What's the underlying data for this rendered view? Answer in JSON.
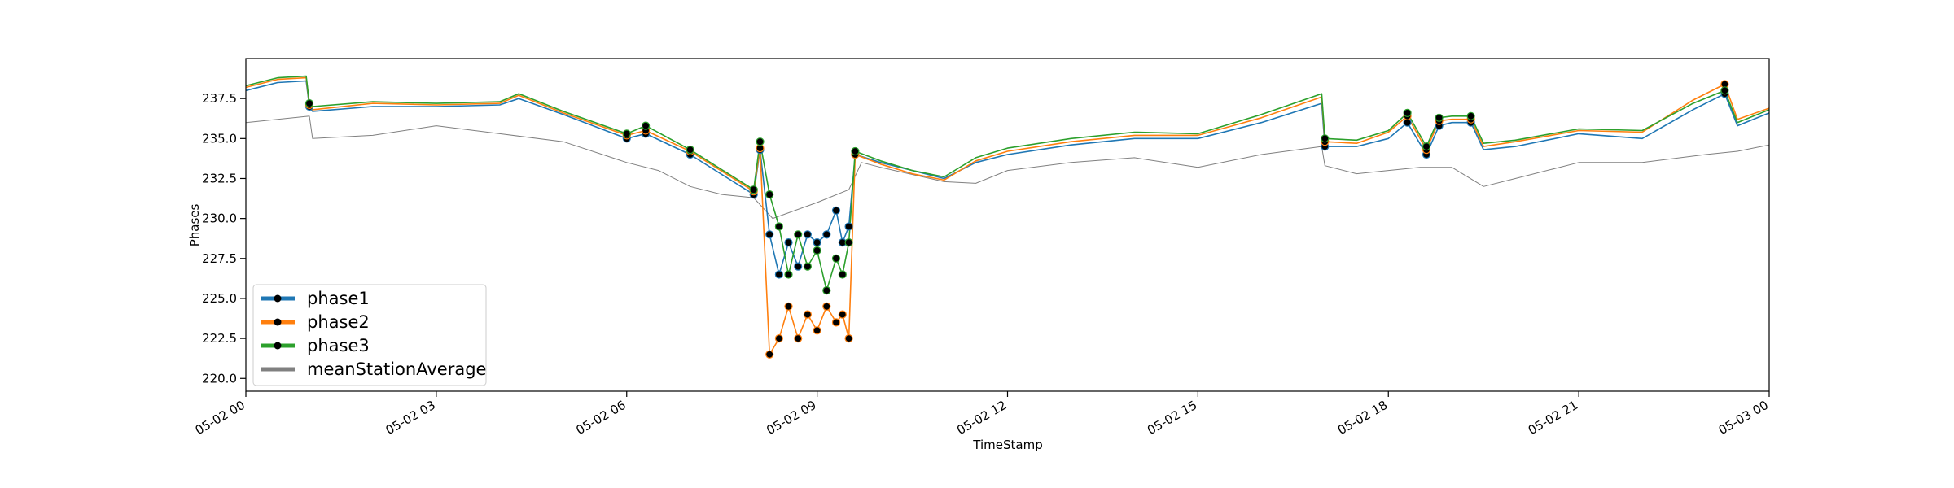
{
  "chart_data": {
    "type": "line",
    "title": "",
    "xlabel": "TimeStamp",
    "ylabel": "Phases",
    "xlim": [
      0,
      24
    ],
    "ylim": [
      219.2,
      240.0
    ],
    "x_ticks": [
      0,
      3,
      6,
      9,
      12,
      15,
      18,
      21,
      24
    ],
    "x_tick_labels": [
      "05-02 00",
      "05-02 03",
      "05-02 06",
      "05-02 09",
      "05-02 12",
      "05-02 15",
      "05-02 18",
      "05-02 21",
      "05-03 00"
    ],
    "y_ticks": [
      220.0,
      222.5,
      225.0,
      227.5,
      230.0,
      232.5,
      235.0,
      237.5
    ],
    "y_tick_labels": [
      "220.0",
      "222.5",
      "225.0",
      "227.5",
      "230.0",
      "232.5",
      "235.0",
      "237.5"
    ],
    "grid": false,
    "legend_position": "lower-left",
    "series": [
      {
        "name": "phase1",
        "color": "#1f77b4",
        "marker": "black-dot",
        "x": [
          0,
          0.5,
          0.95,
          1.0,
          1.05,
          2.0,
          3.0,
          4.0,
          4.3,
          5.0,
          6.0,
          6.3,
          7.0,
          7.6,
          8.0,
          8.1,
          8.25,
          8.4,
          8.55,
          8.7,
          8.85,
          9.0,
          9.15,
          9.3,
          9.4,
          9.5,
          9.6,
          10.0,
          10.5,
          11.0,
          11.5,
          12.0,
          13.0,
          14.0,
          15.0,
          16.0,
          16.95,
          17.0,
          17.5,
          18.0,
          18.3,
          18.6,
          18.8,
          19.0,
          19.3,
          19.5,
          20.0,
          21.0,
          22.0,
          22.8,
          23.3,
          23.5,
          24.0
        ],
        "y": [
          238.0,
          238.5,
          238.6,
          237.0,
          236.7,
          237.0,
          237.0,
          237.1,
          237.5,
          236.5,
          235.0,
          235.3,
          234.0,
          232.5,
          231.5,
          234.3,
          229.0,
          226.5,
          228.5,
          227.0,
          229.0,
          228.5,
          229.0,
          230.5,
          228.5,
          229.5,
          234.0,
          233.5,
          233.0,
          232.5,
          233.5,
          234.0,
          234.6,
          235.0,
          235.0,
          236.0,
          237.2,
          234.5,
          234.5,
          235.0,
          236.0,
          234.0,
          235.8,
          236.0,
          236.0,
          234.3,
          234.5,
          235.3,
          235.0,
          236.8,
          237.8,
          235.8,
          236.6
        ]
      },
      {
        "name": "phase2",
        "color": "#ff7f0e",
        "marker": "black-dot",
        "x": [
          0,
          0.5,
          0.95,
          1.0,
          1.05,
          2.0,
          3.0,
          4.0,
          4.3,
          5.0,
          6.0,
          6.3,
          7.0,
          7.6,
          8.0,
          8.1,
          8.25,
          8.4,
          8.55,
          8.7,
          8.85,
          9.0,
          9.15,
          9.3,
          9.4,
          9.5,
          9.6,
          10.0,
          10.5,
          11.0,
          11.5,
          12.0,
          13.0,
          14.0,
          15.0,
          16.0,
          16.95,
          17.0,
          17.5,
          18.0,
          18.3,
          18.6,
          18.8,
          19.0,
          19.3,
          19.5,
          20.0,
          21.0,
          22.0,
          22.8,
          23.3,
          23.5,
          24.0
        ],
        "y": [
          238.2,
          238.7,
          238.8,
          237.1,
          236.8,
          237.2,
          237.1,
          237.2,
          237.7,
          236.6,
          235.2,
          235.5,
          234.2,
          232.7,
          231.7,
          234.4,
          221.5,
          222.5,
          224.5,
          222.5,
          224.0,
          223.0,
          224.5,
          223.5,
          224.0,
          222.5,
          234.0,
          233.4,
          232.8,
          232.4,
          233.6,
          234.2,
          234.8,
          235.2,
          235.2,
          236.3,
          237.6,
          234.8,
          234.7,
          235.4,
          236.4,
          234.3,
          236.1,
          236.2,
          236.2,
          234.5,
          234.8,
          235.5,
          235.4,
          237.4,
          238.4,
          236.2,
          236.9
        ]
      },
      {
        "name": "phase3",
        "color": "#2ca02c",
        "marker": "black-dot",
        "x": [
          0,
          0.5,
          0.95,
          1.0,
          1.05,
          2.0,
          3.0,
          4.0,
          4.3,
          5.0,
          6.0,
          6.3,
          7.0,
          7.6,
          8.0,
          8.1,
          8.25,
          8.4,
          8.55,
          8.7,
          8.85,
          9.0,
          9.15,
          9.3,
          9.4,
          9.5,
          9.6,
          10.0,
          10.5,
          11.0,
          11.5,
          12.0,
          13.0,
          14.0,
          15.0,
          16.0,
          16.95,
          17.0,
          17.5,
          18.0,
          18.3,
          18.6,
          18.8,
          19.0,
          19.3,
          19.5,
          20.0,
          21.0,
          22.0,
          22.8,
          23.3,
          23.5,
          24.0
        ],
        "y": [
          238.3,
          238.8,
          238.9,
          237.2,
          237.0,
          237.3,
          237.2,
          237.3,
          237.8,
          236.7,
          235.3,
          235.8,
          234.3,
          232.8,
          231.8,
          234.8,
          231.5,
          229.5,
          226.5,
          229.0,
          227.0,
          228.0,
          225.5,
          227.5,
          226.5,
          228.5,
          234.2,
          233.6,
          233.0,
          232.6,
          233.8,
          234.4,
          235.0,
          235.4,
          235.3,
          236.5,
          237.8,
          235.0,
          234.9,
          235.5,
          236.6,
          234.5,
          236.3,
          236.4,
          236.4,
          234.7,
          234.9,
          235.6,
          235.5,
          237.2,
          238.0,
          236.0,
          236.8
        ]
      },
      {
        "name": "meanStationAverage",
        "color": "#808080",
        "marker": "none",
        "x": [
          0,
          0.5,
          1.0,
          1.05,
          2.0,
          3.0,
          4.0,
          5.0,
          6.0,
          6.5,
          7.0,
          7.5,
          8.0,
          8.3,
          9.0,
          9.5,
          9.7,
          10.0,
          11.0,
          11.5,
          12.0,
          13.0,
          14.0,
          15.0,
          16.0,
          16.95,
          17.0,
          17.5,
          18.0,
          18.5,
          19.0,
          19.5,
          20.0,
          21.0,
          22.0,
          23.0,
          23.5,
          24.0
        ],
        "y": [
          236.0,
          236.2,
          236.4,
          235.0,
          235.2,
          235.8,
          235.3,
          234.8,
          233.5,
          233.0,
          232.0,
          231.5,
          231.3,
          230.0,
          231.0,
          231.8,
          233.5,
          233.2,
          232.3,
          232.2,
          233.0,
          233.5,
          233.8,
          233.2,
          234.0,
          234.5,
          233.3,
          232.8,
          233.0,
          233.2,
          233.2,
          232.0,
          232.5,
          233.5,
          233.5,
          234.0,
          234.2,
          234.6
        ]
      }
    ]
  }
}
